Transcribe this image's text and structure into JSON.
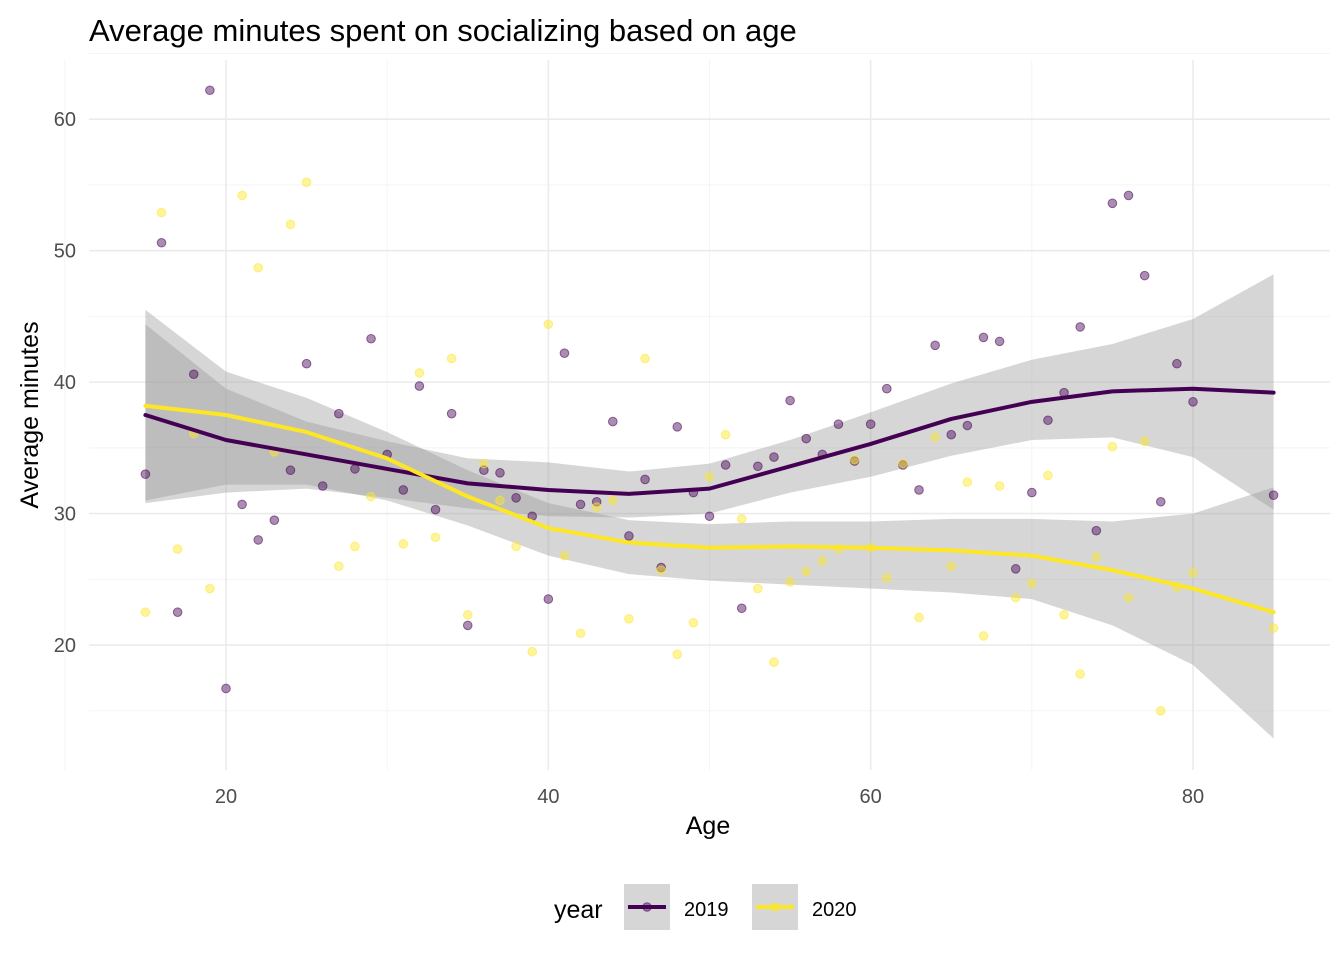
{
  "chart_data": {
    "type": "scatter",
    "title": "Average minutes spent on socializing based on age",
    "xlabel": "Age",
    "ylabel": "Average minutes",
    "xlim": [
      11.5,
      88.5
    ],
    "ylim": [
      10.5,
      64.5
    ],
    "x_ticks": [
      20,
      40,
      60,
      80
    ],
    "y_ticks": [
      20,
      30,
      40,
      50,
      60
    ],
    "x_tick_labels": [
      "20",
      "40",
      "60",
      "80"
    ],
    "y_tick_labels": [
      "20",
      "30",
      "40",
      "50",
      "60"
    ],
    "grid": true,
    "legend": {
      "title": "year",
      "position": "bottom",
      "entries": [
        "2019",
        "2020"
      ]
    },
    "series": [
      {
        "name": "2019",
        "color": "#440154",
        "points": [
          [
            15,
            33.0
          ],
          [
            16,
            50.6
          ],
          [
            17,
            22.5
          ],
          [
            18,
            40.6
          ],
          [
            19,
            62.2
          ],
          [
            20,
            16.7
          ],
          [
            21,
            30.7
          ],
          [
            22,
            28.0
          ],
          [
            23,
            29.5
          ],
          [
            24,
            33.3
          ],
          [
            25,
            41.4
          ],
          [
            26,
            32.1
          ],
          [
            27,
            37.6
          ],
          [
            28,
            33.4
          ],
          [
            29,
            43.3
          ],
          [
            30,
            34.5
          ],
          [
            31,
            31.8
          ],
          [
            32,
            39.7
          ],
          [
            33,
            30.3
          ],
          [
            34,
            37.6
          ],
          [
            35,
            21.5
          ],
          [
            36,
            33.3
          ],
          [
            37,
            33.1
          ],
          [
            38,
            31.2
          ],
          [
            39,
            29.8
          ],
          [
            40,
            23.5
          ],
          [
            41,
            42.2
          ],
          [
            42,
            30.7
          ],
          [
            43,
            30.9
          ],
          [
            44,
            37.0
          ],
          [
            45,
            28.3
          ],
          [
            46,
            32.6
          ],
          [
            47,
            25.9
          ],
          [
            48,
            36.6
          ],
          [
            49,
            31.6
          ],
          [
            50,
            29.8
          ],
          [
            51,
            33.7
          ],
          [
            52,
            22.8
          ],
          [
            53,
            33.6
          ],
          [
            54,
            34.3
          ],
          [
            55,
            38.6
          ],
          [
            56,
            35.7
          ],
          [
            57,
            34.5
          ],
          [
            58,
            36.8
          ],
          [
            59,
            34.0
          ],
          [
            60,
            36.8
          ],
          [
            61,
            39.5
          ],
          [
            62,
            33.7
          ],
          [
            63,
            31.8
          ],
          [
            64,
            42.8
          ],
          [
            65,
            36.0
          ],
          [
            66,
            36.7
          ],
          [
            67,
            43.4
          ],
          [
            68,
            43.1
          ],
          [
            69,
            25.8
          ],
          [
            70,
            31.6
          ],
          [
            71,
            37.1
          ],
          [
            72,
            39.2
          ],
          [
            73,
            44.2
          ],
          [
            74,
            28.7
          ],
          [
            75,
            53.6
          ],
          [
            76,
            54.2
          ],
          [
            77,
            48.1
          ],
          [
            78,
            30.9
          ],
          [
            79,
            41.4
          ],
          [
            80,
            38.5
          ],
          [
            85,
            31.4
          ]
        ],
        "smooth": [
          [
            15,
            37.5
          ],
          [
            20,
            35.6
          ],
          [
            25,
            34.5
          ],
          [
            30,
            33.4
          ],
          [
            35,
            32.3
          ],
          [
            40,
            31.8
          ],
          [
            45,
            31.5
          ],
          [
            50,
            31.9
          ],
          [
            55,
            33.6
          ],
          [
            60,
            35.3
          ],
          [
            65,
            37.2
          ],
          [
            70,
            38.5
          ],
          [
            75,
            39.3
          ],
          [
            80,
            39.5
          ],
          [
            85,
            39.2
          ]
        ],
        "ci_upper": [
          [
            15,
            44.4
          ],
          [
            20,
            39.5
          ],
          [
            25,
            37.0
          ],
          [
            30,
            35.5
          ],
          [
            35,
            34.2
          ],
          [
            40,
            33.9
          ],
          [
            45,
            33.2
          ],
          [
            50,
            33.8
          ],
          [
            55,
            35.6
          ],
          [
            60,
            37.7
          ],
          [
            65,
            39.9
          ],
          [
            70,
            41.7
          ],
          [
            75,
            42.9
          ],
          [
            80,
            44.8
          ],
          [
            85,
            48.2
          ]
        ],
        "ci_lower": [
          [
            15,
            30.8
          ],
          [
            20,
            31.6
          ],
          [
            25,
            31.9
          ],
          [
            30,
            31.2
          ],
          [
            35,
            30.4
          ],
          [
            40,
            29.8
          ],
          [
            45,
            29.7
          ],
          [
            50,
            30.0
          ],
          [
            55,
            31.6
          ],
          [
            60,
            32.8
          ],
          [
            65,
            34.4
          ],
          [
            70,
            35.6
          ],
          [
            75,
            35.8
          ],
          [
            80,
            34.3
          ],
          [
            85,
            30.3
          ]
        ]
      },
      {
        "name": "2020",
        "color": "#fde725",
        "points": [
          [
            15,
            22.5
          ],
          [
            16,
            52.9
          ],
          [
            17,
            27.3
          ],
          [
            18,
            36.1
          ],
          [
            19,
            24.3
          ],
          [
            21,
            54.2
          ],
          [
            22,
            48.7
          ],
          [
            23,
            34.7
          ],
          [
            24,
            52.0
          ],
          [
            25,
            55.2
          ],
          [
            27,
            26.0
          ],
          [
            28,
            27.5
          ],
          [
            29,
            31.3
          ],
          [
            31,
            27.7
          ],
          [
            32,
            40.7
          ],
          [
            33,
            28.2
          ],
          [
            34,
            41.8
          ],
          [
            35,
            22.3
          ],
          [
            36,
            33.8
          ],
          [
            37,
            31.0
          ],
          [
            38,
            27.5
          ],
          [
            39,
            19.5
          ],
          [
            40,
            44.4
          ],
          [
            41,
            26.8
          ],
          [
            42,
            20.9
          ],
          [
            43,
            30.5
          ],
          [
            44,
            31.0
          ],
          [
            45,
            22.0
          ],
          [
            46,
            41.8
          ],
          [
            47,
            25.7
          ],
          [
            48,
            19.3
          ],
          [
            49,
            21.7
          ],
          [
            50,
            32.8
          ],
          [
            51,
            36.0
          ],
          [
            52,
            29.6
          ],
          [
            53,
            24.3
          ],
          [
            54,
            18.7
          ],
          [
            55,
            24.8
          ],
          [
            56,
            25.6
          ],
          [
            57,
            26.4
          ],
          [
            58,
            27.3
          ],
          [
            59,
            34.1
          ],
          [
            60,
            27.4
          ],
          [
            61,
            25.1
          ],
          [
            62,
            33.8
          ],
          [
            63,
            22.1
          ],
          [
            64,
            35.8
          ],
          [
            65,
            26.0
          ],
          [
            66,
            32.4
          ],
          [
            67,
            20.7
          ],
          [
            68,
            32.1
          ],
          [
            69,
            23.6
          ],
          [
            70,
            24.7
          ],
          [
            71,
            32.9
          ],
          [
            72,
            22.3
          ],
          [
            73,
            17.8
          ],
          [
            74,
            26.7
          ],
          [
            75,
            35.1
          ],
          [
            76,
            23.6
          ],
          [
            77,
            35.5
          ],
          [
            78,
            15.0
          ],
          [
            79,
            24.4
          ],
          [
            80,
            25.5
          ],
          [
            85,
            21.3
          ]
        ],
        "smooth": [
          [
            15,
            38.2
          ],
          [
            20,
            37.5
          ],
          [
            25,
            36.2
          ],
          [
            30,
            34.2
          ],
          [
            35,
            31.3
          ],
          [
            40,
            28.9
          ],
          [
            45,
            27.8
          ],
          [
            50,
            27.4
          ],
          [
            55,
            27.5
          ],
          [
            60,
            27.4
          ],
          [
            65,
            27.2
          ],
          [
            70,
            26.8
          ],
          [
            75,
            25.7
          ],
          [
            80,
            24.3
          ],
          [
            85,
            22.5
          ]
        ],
        "ci_upper": [
          [
            15,
            45.5
          ],
          [
            20,
            40.8
          ],
          [
            25,
            38.8
          ],
          [
            30,
            36.2
          ],
          [
            35,
            33.3
          ],
          [
            40,
            30.8
          ],
          [
            45,
            29.5
          ],
          [
            50,
            29.2
          ],
          [
            55,
            29.4
          ],
          [
            60,
            29.4
          ],
          [
            65,
            29.6
          ],
          [
            70,
            29.6
          ],
          [
            75,
            29.4
          ],
          [
            80,
            30.0
          ],
          [
            85,
            32.0
          ]
        ],
        "ci_lower": [
          [
            15,
            31.0
          ],
          [
            20,
            32.2
          ],
          [
            25,
            32.2
          ],
          [
            30,
            31.0
          ],
          [
            35,
            29.1
          ],
          [
            40,
            26.8
          ],
          [
            45,
            25.4
          ],
          [
            50,
            24.9
          ],
          [
            55,
            24.6
          ],
          [
            60,
            24.3
          ],
          [
            65,
            24.0
          ],
          [
            70,
            23.5
          ],
          [
            75,
            21.5
          ],
          [
            80,
            18.5
          ],
          [
            85,
            12.9
          ]
        ]
      }
    ],
    "ci_color": "#999999"
  }
}
